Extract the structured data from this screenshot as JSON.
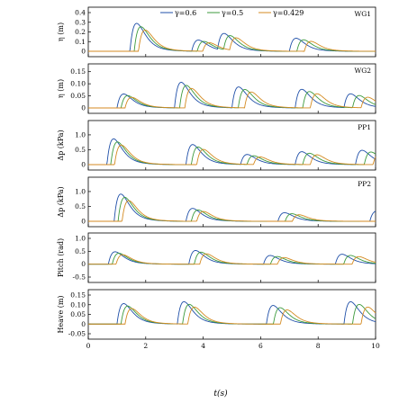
{
  "figure": {
    "xlabel": "t(s)"
  },
  "legend": [
    {
      "label": "γ=0.6",
      "color": "#1f4fa8"
    },
    {
      "label": "γ=0.5",
      "color": "#3c9a3c"
    },
    {
      "label": "γ=0.429",
      "color": "#d48a20"
    }
  ],
  "chart_data": [
    {
      "type": "line",
      "id": "WG1",
      "tag": "WG1",
      "ylabel": "η (m)",
      "xlim": [
        0,
        10
      ],
      "ylim": [
        0,
        0.4
      ],
      "yticks": [
        "0",
        "0.1",
        "0.2",
        "0.3",
        "0.4"
      ],
      "ytick_values": [
        0,
        0.1,
        0.2,
        0.3,
        0.4
      ],
      "xticks": [
        0,
        2,
        4,
        6,
        8,
        10
      ],
      "pulses": [
        [
          1.45,
          0.3
        ],
        [
          3.6,
          0.12
        ],
        [
          4.5,
          0.18
        ],
        [
          7.0,
          0.14
        ]
      ]
    },
    {
      "type": "line",
      "id": "WG2",
      "tag": "WG2",
      "ylabel": "η (m)",
      "xlim": [
        0,
        10
      ],
      "ylim": [
        0,
        0.16
      ],
      "yticks": [
        "0",
        "0.05",
        "0.10",
        "0.15"
      ],
      "ytick_values": [
        0,
        0.05,
        0.1,
        0.15
      ],
      "xticks": [
        0,
        2,
        4,
        6,
        8,
        10
      ],
      "pulses": [
        [
          1.0,
          0.06
        ],
        [
          3.0,
          0.11
        ],
        [
          5.0,
          0.09
        ],
        [
          7.2,
          0.08
        ],
        [
          8.9,
          0.06
        ]
      ]
    },
    {
      "type": "line",
      "id": "PP1",
      "tag": "PP1",
      "ylabel": "Δp (kPa)",
      "xlim": [
        0,
        10
      ],
      "ylim": [
        0,
        1.3
      ],
      "yticks": [
        "0",
        "0.5",
        "1.0"
      ],
      "ytick_values": [
        0,
        0.5,
        1.0
      ],
      "xticks": [
        0,
        2,
        4,
        6,
        8,
        10
      ],
      "pulses": [
        [
          0.65,
          0.9
        ],
        [
          3.4,
          0.7
        ],
        [
          5.3,
          0.35
        ],
        [
          7.2,
          0.45
        ],
        [
          9.3,
          0.5
        ]
      ]
    },
    {
      "type": "line",
      "id": "PP2",
      "tag": "PP2",
      "ylabel": "Δp (kPa)",
      "xlim": [
        0,
        10
      ],
      "ylim": [
        0,
        1.3
      ],
      "yticks": [
        "0",
        "0.5",
        "1.0"
      ],
      "ytick_values": [
        0,
        0.5,
        1.0
      ],
      "xticks": [
        0,
        2,
        4,
        6,
        8,
        10
      ],
      "pulses": [
        [
          0.9,
          0.95
        ],
        [
          3.4,
          0.45
        ],
        [
          6.6,
          0.3
        ],
        [
          9.8,
          0.35
        ]
      ]
    },
    {
      "type": "line",
      "id": "PITCH",
      "tag": "",
      "ylabel": "Pitch (rad)",
      "xlim": [
        0,
        10
      ],
      "ylim": [
        -0.5,
        1.0
      ],
      "yticks": [
        "-0.5",
        "0",
        "0.5",
        "1.0"
      ],
      "ytick_values": [
        -0.5,
        0,
        0.5,
        1.0
      ],
      "xticks": [
        0,
        2,
        4,
        6,
        8,
        10
      ],
      "pulses": [
        [
          0.7,
          0.5
        ],
        [
          3.5,
          0.55
        ],
        [
          6.1,
          0.35
        ],
        [
          8.6,
          0.4
        ]
      ]
    },
    {
      "type": "line",
      "id": "HEAVE",
      "tag": "",
      "ylabel": "Heave (m)",
      "xlim": [
        0,
        10
      ],
      "ylim": [
        -0.05,
        0.15
      ],
      "yticks": [
        "-0.05",
        "0",
        "0.05",
        "0.10",
        "0.15"
      ],
      "ytick_values": [
        -0.05,
        0,
        0.05,
        0.1,
        0.15
      ],
      "xticks": [
        0,
        2,
        4,
        6,
        8,
        10
      ],
      "pulses": [
        [
          1.0,
          0.11
        ],
        [
          3.1,
          0.12
        ],
        [
          6.2,
          0.1
        ],
        [
          8.9,
          0.12
        ]
      ]
    }
  ]
}
